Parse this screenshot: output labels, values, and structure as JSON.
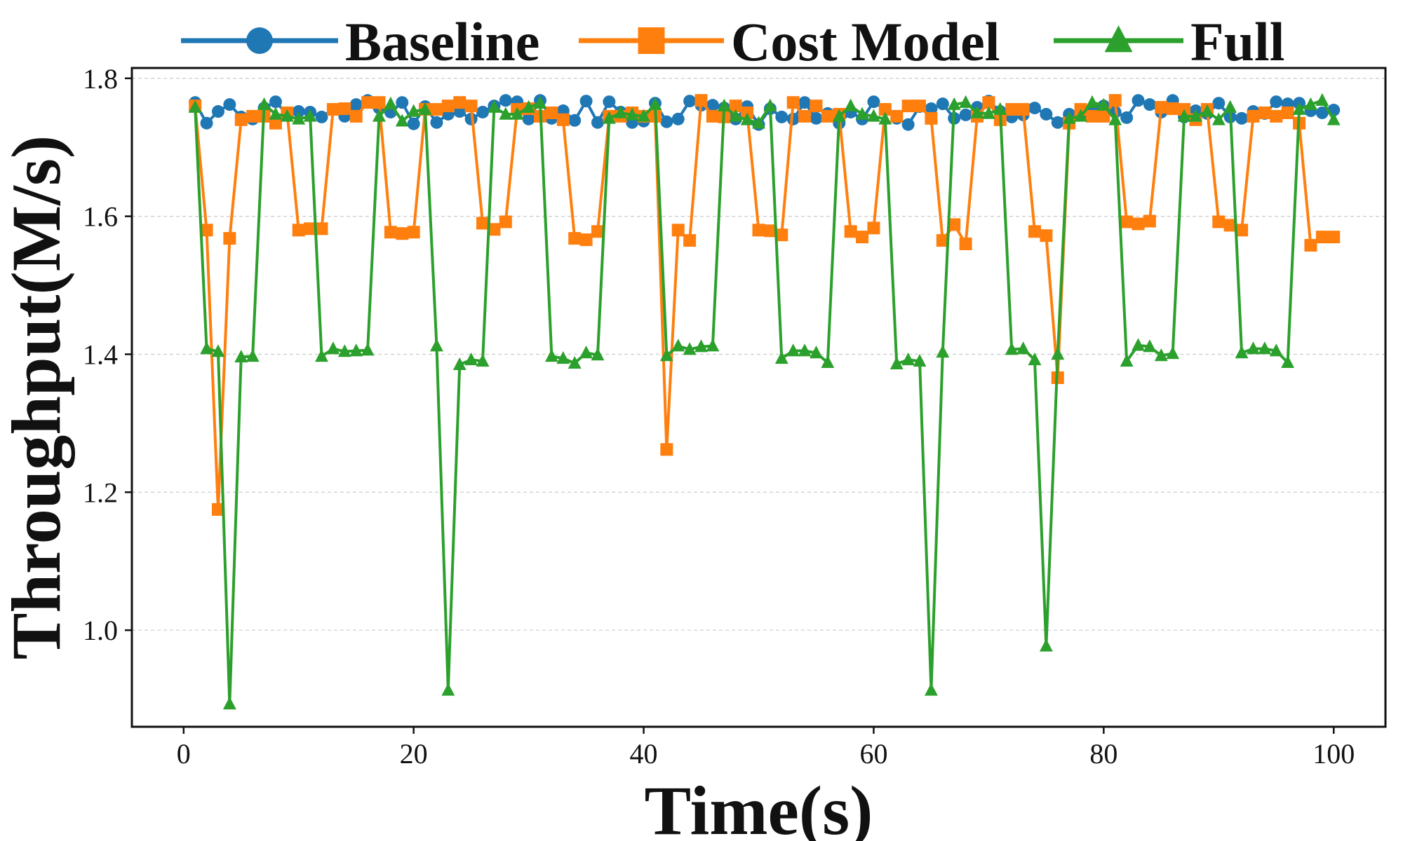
{
  "chart_data": {
    "type": "line",
    "title": "",
    "xlabel": "Time(s)",
    "ylabel": "Throughput(M/s)",
    "xlim": [
      -4.5,
      104.5
    ],
    "ylim": [
      0.86,
      1.815
    ],
    "x_ticks": [
      "0",
      "20",
      "40",
      "60",
      "80",
      "100"
    ],
    "y_ticks": [
      "1.0",
      "1.2",
      "1.4",
      "1.6",
      "1.8"
    ],
    "grid": "horizontal dashed",
    "legend": "top, above plot",
    "x": [
      1,
      2,
      3,
      4,
      5,
      6,
      7,
      8,
      9,
      10,
      11,
      12,
      13,
      14,
      15,
      16,
      17,
      18,
      19,
      20,
      21,
      22,
      23,
      24,
      25,
      26,
      27,
      28,
      29,
      30,
      31,
      32,
      33,
      34,
      35,
      36,
      37,
      38,
      39,
      40,
      41,
      42,
      43,
      44,
      45,
      46,
      47,
      48,
      49,
      50,
      51,
      52,
      53,
      54,
      55,
      56,
      57,
      58,
      59,
      60,
      61,
      62,
      63,
      64,
      65,
      66,
      67,
      68,
      69,
      70,
      71,
      72,
      73,
      74,
      75,
      76,
      77,
      78,
      79,
      80,
      81,
      82,
      83,
      84,
      85,
      86,
      87,
      88,
      89,
      90,
      91,
      92,
      93,
      94,
      95,
      96,
      97,
      98,
      99,
      100
    ],
    "series": [
      {
        "name": "Baseline",
        "color": "#1f77b4",
        "marker": "circle",
        "values": [
          1.765,
          1.735,
          1.752,
          1.762,
          1.744,
          1.741,
          1.757,
          1.766,
          1.748,
          1.752,
          1.751,
          1.744,
          1.755,
          1.745,
          1.762,
          1.768,
          1.757,
          1.751,
          1.765,
          1.734,
          1.759,
          1.736,
          1.748,
          1.752,
          1.741,
          1.751,
          1.76,
          1.768,
          1.766,
          1.741,
          1.768,
          1.742,
          1.753,
          1.739,
          1.767,
          1.736,
          1.766,
          1.751,
          1.736,
          1.738,
          1.764,
          1.737,
          1.741,
          1.767,
          1.761,
          1.761,
          1.757,
          1.741,
          1.759,
          1.733,
          1.756,
          1.744,
          1.741,
          1.765,
          1.742,
          1.749,
          1.735,
          1.751,
          1.741,
          1.766,
          1.755,
          1.742,
          1.733,
          1.759,
          1.756,
          1.763,
          1.742,
          1.747,
          1.758,
          1.767,
          1.752,
          1.744,
          1.747,
          1.757,
          1.748,
          1.736,
          1.748,
          1.747,
          1.756,
          1.76,
          1.751,
          1.743,
          1.768,
          1.762,
          1.751,
          1.768,
          1.744,
          1.753,
          1.749,
          1.764,
          1.744,
          1.742,
          1.752,
          1.749,
          1.766,
          1.763,
          1.764,
          1.753,
          1.75,
          1.754
        ]
      },
      {
        "name": "Cost Model",
        "color": "#ff7f0e",
        "marker": "square",
        "values": [
          1.76,
          1.58,
          1.175,
          1.568,
          1.74,
          1.745,
          1.745,
          1.735,
          1.75,
          1.58,
          1.582,
          1.582,
          1.755,
          1.756,
          1.745,
          1.765,
          1.765,
          1.577,
          1.575,
          1.577,
          1.755,
          1.755,
          1.76,
          1.765,
          1.76,
          1.59,
          1.581,
          1.592,
          1.755,
          1.756,
          1.745,
          1.75,
          1.74,
          1.568,
          1.566,
          1.578,
          1.745,
          1.745,
          1.75,
          1.745,
          1.745,
          1.262,
          1.58,
          1.565,
          1.768,
          1.745,
          1.744,
          1.76,
          1.75,
          1.58,
          1.579,
          1.573,
          1.765,
          1.745,
          1.76,
          1.745,
          1.748,
          1.578,
          1.57,
          1.583,
          1.755,
          1.745,
          1.76,
          1.76,
          1.742,
          1.565,
          1.588,
          1.56,
          1.745,
          1.765,
          1.74,
          1.755,
          1.755,
          1.578,
          1.572,
          1.366,
          1.735,
          1.755,
          1.745,
          1.745,
          1.768,
          1.592,
          1.589,
          1.593,
          1.758,
          1.756,
          1.755,
          1.74,
          1.755,
          1.592,
          1.587,
          1.58,
          1.745,
          1.75,
          1.745,
          1.75,
          1.735,
          1.558,
          1.57,
          1.57
        ]
      },
      {
        "name": "Full",
        "color": "#2ca02c",
        "marker": "triangle",
        "values": [
          1.758,
          1.408,
          1.404,
          0.893,
          1.396,
          1.397,
          1.762,
          1.748,
          1.745,
          1.741,
          1.745,
          1.397,
          1.408,
          1.404,
          1.405,
          1.406,
          1.745,
          1.763,
          1.738,
          1.752,
          1.755,
          1.412,
          0.913,
          1.385,
          1.392,
          1.39,
          1.758,
          1.748,
          1.748,
          1.758,
          1.764,
          1.397,
          1.394,
          1.387,
          1.402,
          1.399,
          1.742,
          1.75,
          1.747,
          1.745,
          1.762,
          1.398,
          1.412,
          1.407,
          1.411,
          1.412,
          1.76,
          1.745,
          1.74,
          1.735,
          1.76,
          1.394,
          1.405,
          1.405,
          1.402,
          1.388,
          1.745,
          1.76,
          1.748,
          1.745,
          1.741,
          1.386,
          1.392,
          1.39,
          0.913,
          1.403,
          1.762,
          1.765,
          1.75,
          1.749,
          1.755,
          1.407,
          1.408,
          1.392,
          0.977,
          1.4,
          1.742,
          1.745,
          1.765,
          1.761,
          1.74,
          1.39,
          1.413,
          1.411,
          1.398,
          1.401,
          1.745,
          1.745,
          1.752,
          1.74,
          1.758,
          1.402,
          1.408,
          1.408,
          1.405,
          1.388,
          1.755,
          1.762,
          1.768,
          1.74
        ]
      }
    ]
  }
}
